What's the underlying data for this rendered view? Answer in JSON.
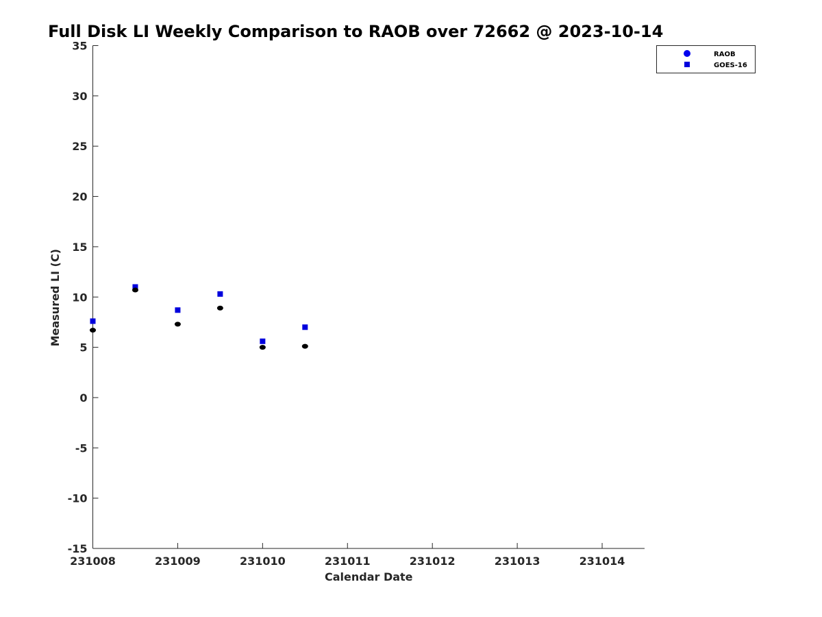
{
  "chart_data": {
    "type": "scatter",
    "title": "Full Disk LI Weekly Comparison to RAOB over 72662 @ 2023-10-14",
    "xlabel": "Calendar Date",
    "ylabel": "Measured LI (C)",
    "x_ticks": [
      {
        "value": 0,
        "label": "231008"
      },
      {
        "value": 1,
        "label": "231009"
      },
      {
        "value": 2,
        "label": "231010"
      },
      {
        "value": 3,
        "label": "231011"
      },
      {
        "value": 4,
        "label": "231012"
      },
      {
        "value": 5,
        "label": "231013"
      },
      {
        "value": 6,
        "label": "231014"
      }
    ],
    "xlim": [
      0,
      6.5
    ],
    "ylim": [
      -15,
      35
    ],
    "y_ticks": [
      35,
      30,
      25,
      20,
      15,
      10,
      5,
      0,
      -5,
      -10,
      -15
    ],
    "grid": false,
    "legend_position": "top-right",
    "series": [
      {
        "name": "RAOB",
        "marker": "circle",
        "color": "#000000",
        "legend_color": "#0000ee",
        "points": [
          {
            "x": 0.0,
            "y": 6.7
          },
          {
            "x": 0.5,
            "y": 10.7
          },
          {
            "x": 1.0,
            "y": 7.3
          },
          {
            "x": 1.5,
            "y": 8.9
          },
          {
            "x": 2.0,
            "y": 5.0
          },
          {
            "x": 2.5,
            "y": 5.1
          }
        ]
      },
      {
        "name": "GOES-16",
        "marker": "square",
        "color": "#0000dd",
        "legend_color": "#0000dd",
        "points": [
          {
            "x": 0.0,
            "y": 7.6
          },
          {
            "x": 0.5,
            "y": 11.0
          },
          {
            "x": 1.0,
            "y": 8.7
          },
          {
            "x": 1.5,
            "y": 10.3
          },
          {
            "x": 2.0,
            "y": 5.6
          },
          {
            "x": 2.5,
            "y": 7.0
          }
        ]
      }
    ]
  }
}
